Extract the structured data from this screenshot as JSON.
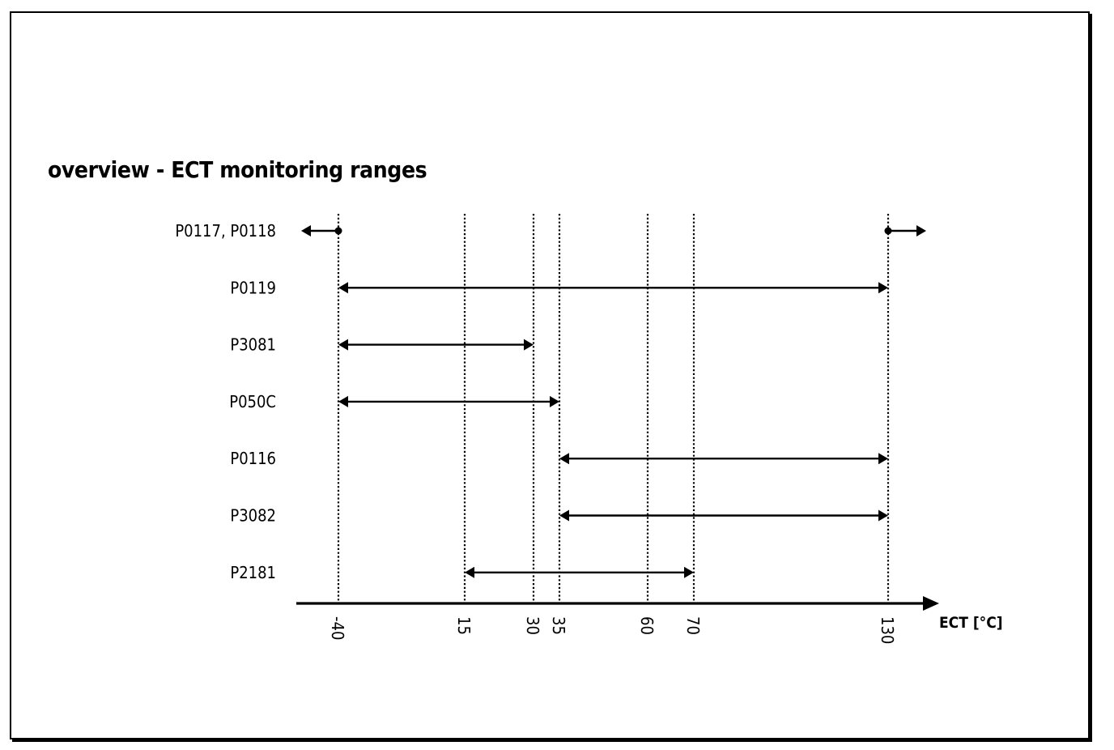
{
  "title": "overview - ECT monitoring ranges",
  "chart_data": {
    "type": "range-diagram",
    "axis": {
      "label": "ECT [°C]",
      "tick_values": [
        -40,
        15,
        30,
        35,
        60,
        70,
        130
      ],
      "tick_labels": [
        "-40",
        "15",
        "30",
        "35",
        "60",
        "70",
        "130"
      ]
    },
    "rows": [
      {
        "label": "P0117, P0118",
        "kind": "outside",
        "low": -40,
        "high": 130
      },
      {
        "label": "P0119",
        "kind": "range",
        "low": -40,
        "high": 130
      },
      {
        "label": "P3081",
        "kind": "range",
        "low": -40,
        "high": 30
      },
      {
        "label": "P050C",
        "kind": "range",
        "low": -40,
        "high": 35
      },
      {
        "label": "P0116",
        "kind": "range",
        "low": 35,
        "high": 130
      },
      {
        "label": "P3082",
        "kind": "range",
        "low": 35,
        "high": 130
      },
      {
        "label": "P2181",
        "kind": "range",
        "low": 15,
        "high": 70
      }
    ]
  }
}
